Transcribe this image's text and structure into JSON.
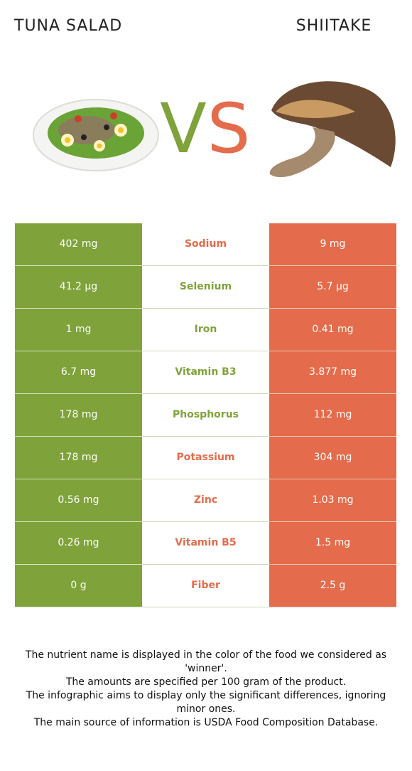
{
  "header": {
    "left_food": "TUNA SALAD",
    "right_food": "SHIITAKE",
    "vs_v": "V",
    "vs_s": "S"
  },
  "colors": {
    "left_winner": "#7fa23a",
    "right_winner": "#e46b4b",
    "text_on_color": "#ffffff"
  },
  "chart_data": {
    "type": "table",
    "columns": [
      "TUNA SALAD",
      "",
      "SHIITAKE"
    ],
    "rows": [
      {
        "nutrient": "Sodium",
        "left": "402 mg",
        "right": "9 mg",
        "winner": "right"
      },
      {
        "nutrient": "Selenium",
        "left": "41.2 µg",
        "right": "5.7 µg",
        "winner": "left"
      },
      {
        "nutrient": "Iron",
        "left": "1 mg",
        "right": "0.41 mg",
        "winner": "left"
      },
      {
        "nutrient": "Vitamin B3",
        "left": "6.7 mg",
        "right": "3.877 mg",
        "winner": "left"
      },
      {
        "nutrient": "Phosphorus",
        "left": "178 mg",
        "right": "112 mg",
        "winner": "left"
      },
      {
        "nutrient": "Potassium",
        "left": "178 mg",
        "right": "304 mg",
        "winner": "right"
      },
      {
        "nutrient": "Zinc",
        "left": "0.56 mg",
        "right": "1.03 mg",
        "winner": "right"
      },
      {
        "nutrient": "Vitamin B5",
        "left": "0.26 mg",
        "right": "1.5 mg",
        "winner": "right"
      },
      {
        "nutrient": "Fiber",
        "left": "0 g",
        "right": "2.5 g",
        "winner": "right"
      }
    ]
  },
  "footer": {
    "line1": "The nutrient name is displayed in the color of the food we considered as 'winner'.",
    "line2": "The amounts are specified per 100 gram of the product.",
    "line3": "The infographic aims to display only the significant differences, ignoring minor ones.",
    "line4": "The main source of information is USDA Food Composition Database."
  }
}
